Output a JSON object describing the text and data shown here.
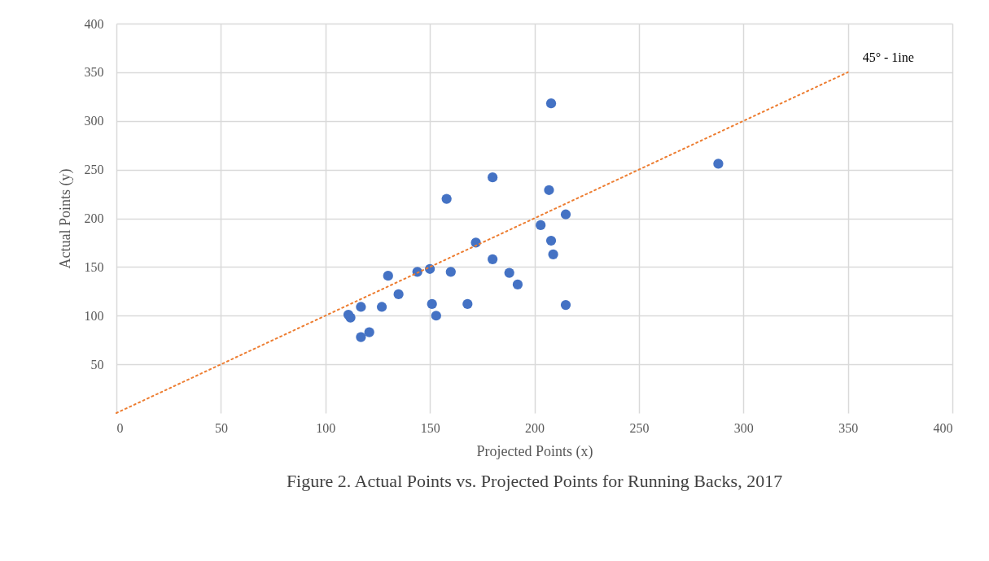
{
  "chart_data": {
    "type": "scatter",
    "title": "Figure 2.   Actual Points vs. Projected Points for Running Backs, 2017",
    "xlabel": "Projected Points (x)",
    "ylabel": "Actual Points (y)",
    "xlim": [
      0,
      400
    ],
    "xticks": [
      0,
      50,
      100,
      150,
      200,
      250,
      300,
      350,
      400
    ],
    "ylim": [
      0,
      400
    ],
    "yticks": [
      50,
      100,
      150,
      200,
      250,
      300,
      350,
      400
    ],
    "grid": true,
    "series": [
      {
        "color": "#4472c4",
        "marker": "circle",
        "x": [
          111,
          112,
          117,
          117,
          121,
          127,
          130,
          135,
          144,
          150,
          151,
          153,
          158,
          160,
          168,
          172,
          180,
          180,
          188,
          192,
          203,
          207,
          208,
          209,
          208,
          215,
          215,
          288
        ],
        "values": [
          101,
          98,
          109,
          78,
          83,
          109,
          141,
          122,
          145,
          148,
          112,
          100,
          220,
          145,
          112,
          175,
          158,
          242,
          144,
          132,
          193,
          229,
          177,
          163,
          318,
          204,
          111,
          256
        ]
      },
      {
        "type": "line",
        "name": "45° - 1ine",
        "color": "#ed7d31",
        "line_style": "dotted",
        "x": [
          0,
          350
        ],
        "values": [
          0,
          350
        ]
      }
    ]
  }
}
